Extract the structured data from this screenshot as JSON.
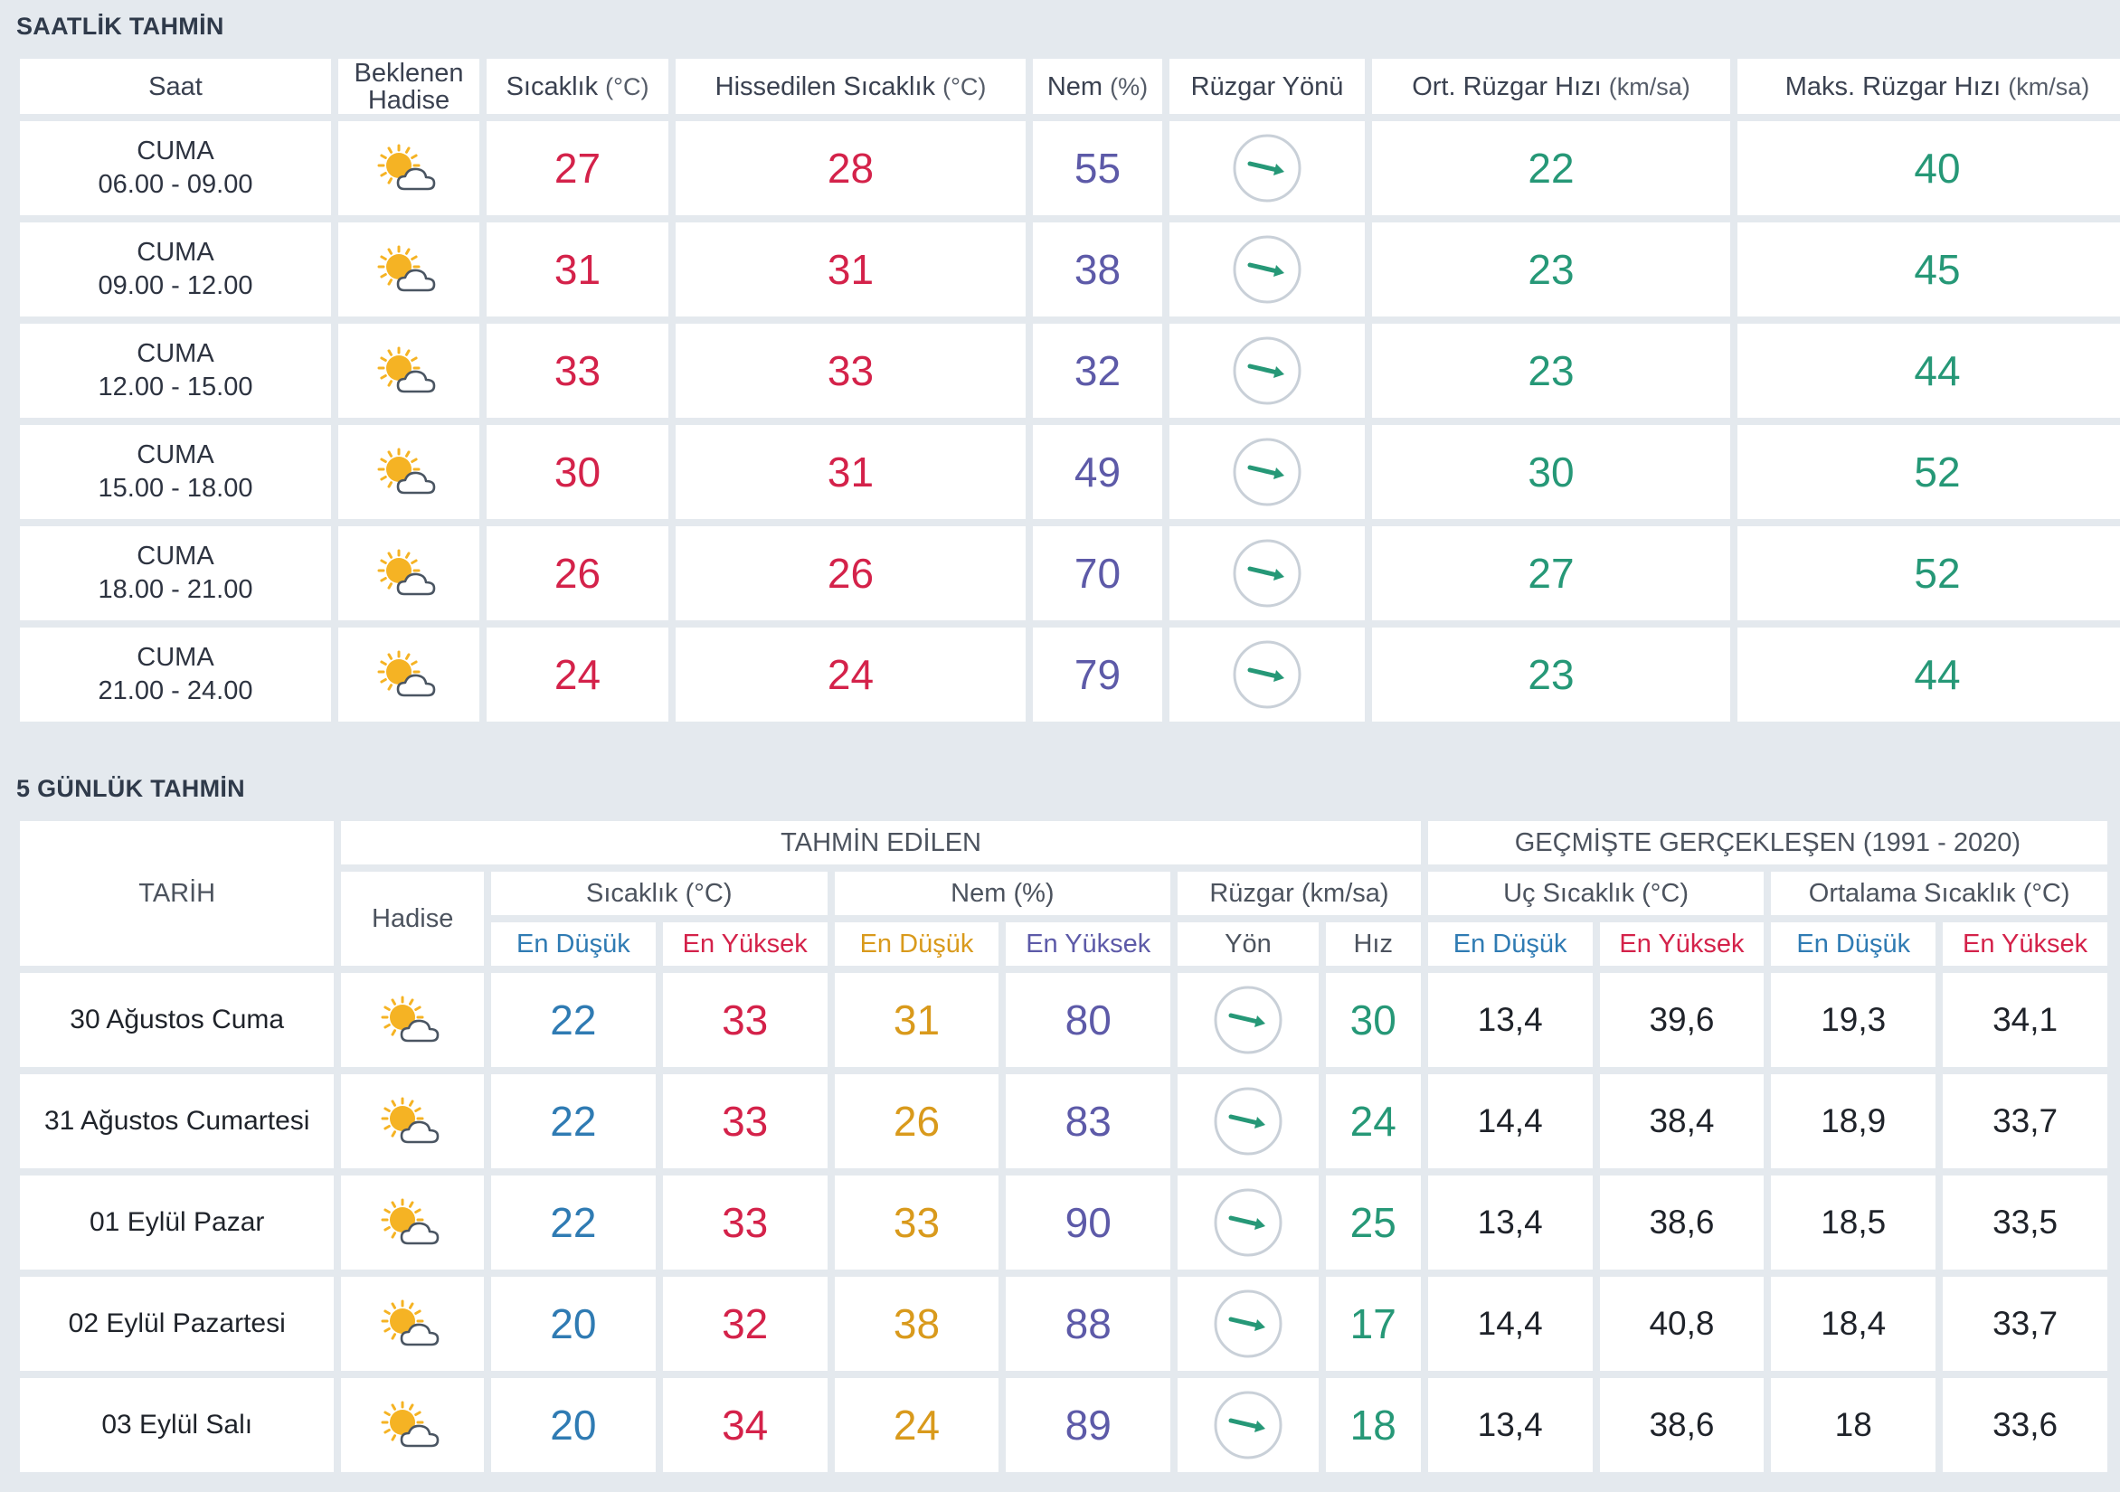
{
  "colors": {
    "background": "#e4e9ee",
    "temperature": "#d4224a",
    "humidity": "#5d5aa8",
    "wind": "#269877",
    "low_temp": "#2f7bb3",
    "low_humidity": "#d99a1c",
    "sun": "#f5b324"
  },
  "hourly": {
    "title": "SAATLİK TAHMİN",
    "headers": {
      "time": "Saat",
      "event": "Beklenen Hadise",
      "temp": "Sıcaklık",
      "temp_unit": "(°C)",
      "feels": "Hissedilen Sıcaklık",
      "feels_unit": "(°C)",
      "humidity": "Nem",
      "humidity_unit": "(%)",
      "wind_dir": "Rüzgar Yönü",
      "avg_wind": "Ort. Rüzgar Hızı",
      "avg_wind_unit": "(km/sa)",
      "max_wind": "Maks. Rüzgar Hızı",
      "max_wind_unit": "(km/sa)"
    },
    "rows": [
      {
        "day": "CUMA",
        "range": "06.00 - 09.00",
        "icon": "partly-sunny-icon",
        "temp": "27",
        "feels": "28",
        "humidity": "55",
        "wind_icon": "wind-arrow-icon",
        "avg_wind": "22",
        "max_wind": "40"
      },
      {
        "day": "CUMA",
        "range": "09.00 - 12.00",
        "icon": "partly-sunny-icon",
        "temp": "31",
        "feels": "31",
        "humidity": "38",
        "wind_icon": "wind-arrow-icon",
        "avg_wind": "23",
        "max_wind": "45"
      },
      {
        "day": "CUMA",
        "range": "12.00 - 15.00",
        "icon": "partly-sunny-icon",
        "temp": "33",
        "feels": "33",
        "humidity": "32",
        "wind_icon": "wind-arrow-icon",
        "avg_wind": "23",
        "max_wind": "44"
      },
      {
        "day": "CUMA",
        "range": "15.00 - 18.00",
        "icon": "partly-sunny-icon",
        "temp": "30",
        "feels": "31",
        "humidity": "49",
        "wind_icon": "wind-arrow-icon",
        "avg_wind": "30",
        "max_wind": "52"
      },
      {
        "day": "CUMA",
        "range": "18.00 - 21.00",
        "icon": "partly-sunny-icon",
        "temp": "26",
        "feels": "26",
        "humidity": "70",
        "wind_icon": "wind-arrow-icon",
        "avg_wind": "27",
        "max_wind": "52"
      },
      {
        "day": "CUMA",
        "range": "21.00 - 24.00",
        "icon": "partly-sunny-icon",
        "temp": "24",
        "feels": "24",
        "humidity": "79",
        "wind_icon": "wind-arrow-icon",
        "avg_wind": "23",
        "max_wind": "44"
      }
    ]
  },
  "daily": {
    "title": "5 GÜNLÜK TAHMİN",
    "headers": {
      "date": "TARİH",
      "forecast_group": "TAHMİN EDİLEN",
      "history_group": "GEÇMİŞTE GERÇEKLEŞEN (1991 - 2020)",
      "event": "Hadise",
      "temp": "Sıcaklık (°C)",
      "humidity": "Nem (%)",
      "wind": "Rüzgar (km/sa)",
      "extreme_temp": "Uç Sıcaklık (°C)",
      "avg_temp": "Ortalama Sıcaklık (°C)",
      "low": "En Düşük",
      "high": "En Yüksek",
      "direction": "Yön",
      "speed": "Hız"
    },
    "rows": [
      {
        "date": "30 Ağustos Cuma",
        "icon": "partly-sunny-icon",
        "temp_low": "22",
        "temp_high": "33",
        "hum_low": "31",
        "hum_high": "80",
        "wind_icon": "wind-arrow-icon",
        "wind_speed": "30",
        "ext_low": "13,4",
        "ext_high": "39,6",
        "avg_low": "19,3",
        "avg_high": "34,1"
      },
      {
        "date": "31 Ağustos Cumartesi",
        "icon": "partly-sunny-icon",
        "temp_low": "22",
        "temp_high": "33",
        "hum_low": "26",
        "hum_high": "83",
        "wind_icon": "wind-arrow-icon",
        "wind_speed": "24",
        "ext_low": "14,4",
        "ext_high": "38,4",
        "avg_low": "18,9",
        "avg_high": "33,7"
      },
      {
        "date": "01 Eylül Pazar",
        "icon": "partly-sunny-icon",
        "temp_low": "22",
        "temp_high": "33",
        "hum_low": "33",
        "hum_high": "90",
        "wind_icon": "wind-arrow-icon",
        "wind_speed": "25",
        "ext_low": "13,4",
        "ext_high": "38,6",
        "avg_low": "18,5",
        "avg_high": "33,5"
      },
      {
        "date": "02 Eylül Pazartesi",
        "icon": "partly-sunny-icon",
        "temp_low": "20",
        "temp_high": "32",
        "hum_low": "38",
        "hum_high": "88",
        "wind_icon": "wind-arrow-icon",
        "wind_speed": "17",
        "ext_low": "14,4",
        "ext_high": "40,8",
        "avg_low": "18,4",
        "avg_high": "33,7"
      },
      {
        "date": "03 Eylül Salı",
        "icon": "partly-sunny-icon",
        "temp_low": "20",
        "temp_high": "34",
        "hum_low": "24",
        "hum_high": "89",
        "wind_icon": "wind-arrow-icon",
        "wind_speed": "18",
        "ext_low": "13,4",
        "ext_high": "38,6",
        "avg_low": "18",
        "avg_high": "33,6"
      }
    ]
  }
}
